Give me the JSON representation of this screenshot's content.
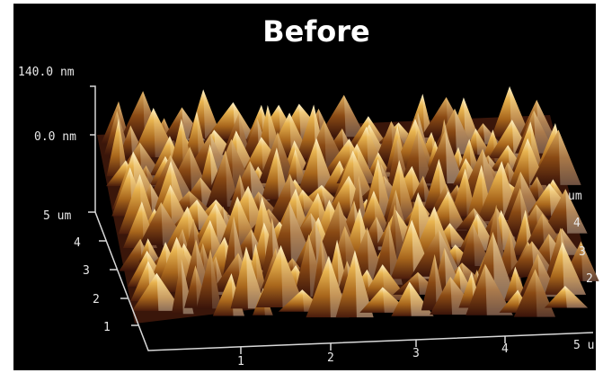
{
  "title": "Before",
  "z_axis": {
    "labels": [
      "140.0 nm",
      "0.0 nm"
    ]
  },
  "y_axis": {
    "labels": [
      "5 um",
      "4",
      "3",
      "2",
      "1"
    ]
  },
  "x_axis": {
    "labels": [
      "1",
      "2",
      "3",
      "4",
      "5 u"
    ]
  },
  "right_axis": {
    "labels": [
      "um",
      "4",
      "3",
      "2"
    ]
  }
}
